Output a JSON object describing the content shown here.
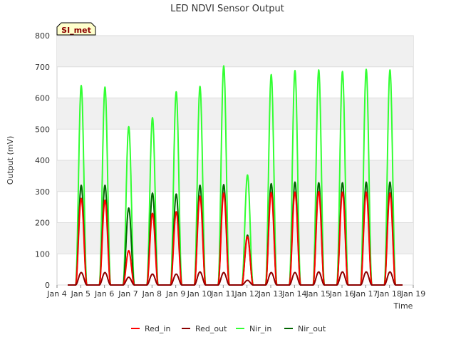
{
  "chart_data": {
    "type": "line",
    "title": "LED NDVI Sensor Output",
    "xlabel": "Time",
    "ylabel": "Output (mV)",
    "badge": "SI_met",
    "ylim": [
      0,
      800
    ],
    "yticks": [
      0,
      100,
      200,
      300,
      400,
      500,
      600,
      700,
      800
    ],
    "xlim": [
      "Jan 4",
      "Jan 19"
    ],
    "xticks": [
      "Jan 4",
      "Jan 5",
      "Jan 6",
      "Jan 7",
      "Jan 8",
      "Jan 9",
      "Jan 10",
      "Jan 11",
      "Jan 12",
      "Jan 13",
      "Jan 14",
      "Jan 15",
      "Jan 16",
      "Jan 17",
      "Jan 18",
      "Jan 19"
    ],
    "grid": true,
    "legend_position": "bottom",
    "days": [
      "Jan 5",
      "Jan 6",
      "Jan 7",
      "Jan 8",
      "Jan 9",
      "Jan 10",
      "Jan 11",
      "Jan 12",
      "Jan 13",
      "Jan 14",
      "Jan 15",
      "Jan 16",
      "Jan 17",
      "Jan 18"
    ],
    "series": [
      {
        "name": "Red_in",
        "color": "#ff0000",
        "daily_peak_mV": [
          278,
          272,
          110,
          230,
          235,
          285,
          295,
          155,
          297,
          298,
          300,
          298,
          298,
          295
        ]
      },
      {
        "name": "Red_out",
        "color": "#8b0000",
        "daily_peak_mV": [
          40,
          40,
          25,
          35,
          35,
          42,
          40,
          15,
          40,
          40,
          42,
          42,
          42,
          42
        ]
      },
      {
        "name": "Nir_in",
        "color": "#33ff33",
        "daily_peak_mV": [
          640,
          635,
          508,
          537,
          620,
          637,
          703,
          353,
          675,
          688,
          690,
          685,
          692,
          690
        ]
      },
      {
        "name": "Nir_out",
        "color": "#006600",
        "daily_peak_mV": [
          320,
          320,
          247,
          295,
          292,
          320,
          322,
          160,
          325,
          330,
          328,
          328,
          330,
          330
        ]
      }
    ]
  }
}
